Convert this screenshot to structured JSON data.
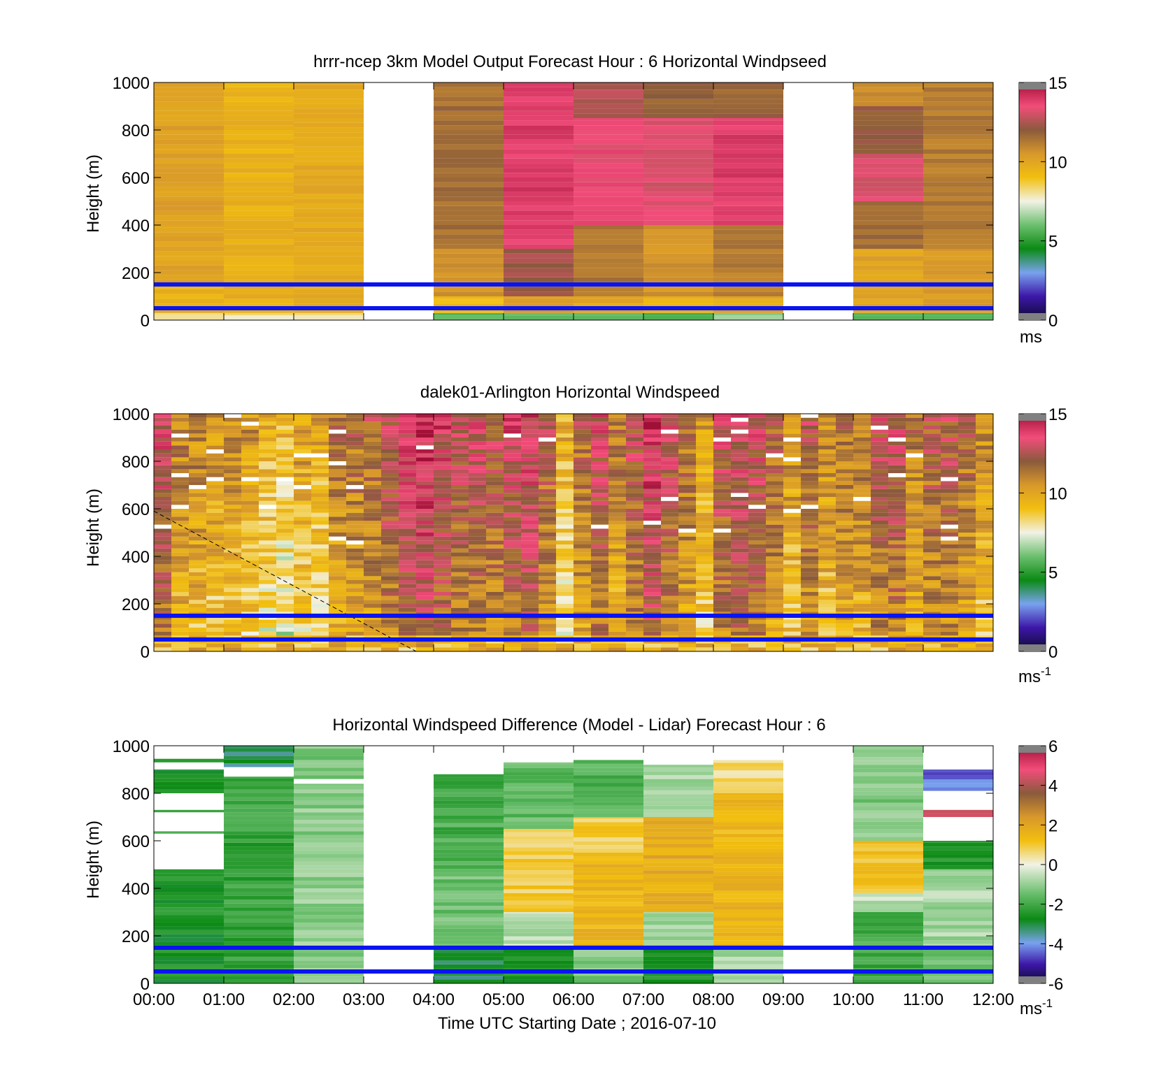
{
  "chart_data": [
    {
      "type": "heatmap",
      "title": "hrrr-ncep 3km Model Output   Forecast Hour : 6 Horizontal Windpseed",
      "xlabel": "",
      "ylabel": "Height (m)",
      "xlim": [
        0,
        12
      ],
      "ylim": [
        0,
        1000
      ],
      "yticks": [
        "0",
        "200",
        "400",
        "600",
        "800",
        "1000"
      ],
      "colorbar": {
        "min": 0,
        "max": 15,
        "ticks": [
          "0",
          "5",
          "10",
          "15"
        ],
        "unit": "ms",
        "unit_sup": ""
      },
      "reference_lines_m": [
        50,
        150
      ],
      "columns": [
        {
          "start_h": 0,
          "end_h": 1,
          "levels": [
            [
              0,
              30,
              8.2
            ],
            [
              30,
              150,
              9.5
            ],
            [
              150,
              400,
              10.1
            ],
            [
              400,
              1000,
              10.2
            ]
          ]
        },
        {
          "start_h": 1,
          "end_h": 2,
          "levels": [
            [
              0,
              30,
              8.0
            ],
            [
              30,
              300,
              9.6
            ],
            [
              300,
              1000,
              9.5
            ]
          ]
        },
        {
          "start_h": 2,
          "end_h": 3,
          "levels": [
            [
              0,
              30,
              8.1
            ],
            [
              30,
              1000,
              9.8
            ]
          ]
        },
        {
          "start_h": 3,
          "end_h": 4,
          "levels": []
        },
        {
          "start_h": 4,
          "end_h": 5,
          "levels": [
            [
              0,
              30,
              5.6
            ],
            [
              30,
              100,
              9.2
            ],
            [
              100,
              300,
              10.6
            ],
            [
              300,
              1000,
              11.5
            ]
          ]
        },
        {
          "start_h": 5,
          "end_h": 6,
          "levels": [
            [
              0,
              30,
              6.0
            ],
            [
              30,
              100,
              10.2
            ],
            [
              100,
              300,
              12.3
            ],
            [
              300,
              1000,
              13.9
            ]
          ]
        },
        {
          "start_h": 6,
          "end_h": 7,
          "levels": [
            [
              0,
              30,
              5.7
            ],
            [
              30,
              100,
              9.8
            ],
            [
              100,
              400,
              11.3
            ],
            [
              400,
              850,
              13.5
            ],
            [
              850,
              1000,
              12.6
            ]
          ]
        },
        {
          "start_h": 7,
          "end_h": 8,
          "levels": [
            [
              0,
              30,
              5.2
            ],
            [
              30,
              100,
              9.6
            ],
            [
              100,
              400,
              10.6
            ],
            [
              400,
              850,
              13.2
            ],
            [
              850,
              1000,
              11.8
            ]
          ]
        },
        {
          "start_h": 8,
          "end_h": 9,
          "levels": [
            [
              0,
              30,
              6.5
            ],
            [
              30,
              100,
              9.9
            ],
            [
              100,
              400,
              11.2
            ],
            [
              400,
              850,
              13.9
            ],
            [
              850,
              1000,
              11.8
            ]
          ]
        },
        {
          "start_h": 9,
          "end_h": 10,
          "levels": []
        },
        {
          "start_h": 10,
          "end_h": 11,
          "levels": [
            [
              0,
              30,
              5.4
            ],
            [
              30,
              300,
              10.1
            ],
            [
              300,
              500,
              11.6
            ],
            [
              500,
              700,
              13.1
            ],
            [
              700,
              900,
              12.0
            ],
            [
              900,
              1000,
              10.6
            ]
          ]
        },
        {
          "start_h": 11,
          "end_h": 12,
          "levels": [
            [
              0,
              30,
              5.8
            ],
            [
              30,
              300,
              10.3
            ],
            [
              300,
              1000,
              11.2
            ]
          ]
        }
      ]
    },
    {
      "type": "heatmap",
      "title": "dalek01-Arlington  Horizontal Windspeed",
      "xlabel": "",
      "ylabel": "Height (m)",
      "xlim": [
        0,
        12
      ],
      "ylim": [
        0,
        1000
      ],
      "yticks": [
        "0",
        "200",
        "400",
        "600",
        "800",
        "1000"
      ],
      "colorbar": {
        "min": 0,
        "max": 15,
        "ticks": [
          "0",
          "5",
          "10",
          "15"
        ],
        "unit": "ms",
        "unit_sup": "-1"
      },
      "reference_lines_m": [
        50,
        150
      ],
      "dashed_line": [
        [
          0,
          590
        ],
        [
          3.75,
          0
        ]
      ],
      "profile_interval_h": 0.25,
      "profile_top_m": 1000,
      "profile_means_ms": [
        13.0,
        11.0,
        10.8,
        10.4,
        10.6,
        10.2,
        9.4,
        9.0,
        10.0,
        9.6,
        11.2,
        11.4,
        11.8,
        12.6,
        13.6,
        14.0,
        13.2,
        12.6,
        12.8,
        12.2,
        13.0,
        13.4,
        11.8,
        9.4,
        11.6,
        12.8,
        11.2,
        12.4,
        13.8,
        12.6,
        11.4,
        10.0,
        12.6,
        13.0,
        12.8,
        11.6,
        10.4,
        12.0,
        10.6,
        11.4,
        11.2,
        12.4,
        12.6,
        11.0,
        12.0,
        12.2,
        11.4,
        10.4
      ]
    },
    {
      "type": "heatmap",
      "title": "Horizontal Windspeed Difference (Model - Lidar) Forecast Hour : 6",
      "xlabel": "Time UTC  Starting Date ; 2016-07-10",
      "ylabel": "Height (m)",
      "xlim": [
        0,
        12
      ],
      "ylim": [
        0,
        1000
      ],
      "xticks": [
        "00:00",
        "01:00",
        "02:00",
        "03:00",
        "04:00",
        "05:00",
        "06:00",
        "07:00",
        "08:00",
        "09:00",
        "10:00",
        "11:00",
        "12:00"
      ],
      "yticks": [
        "0",
        "200",
        "400",
        "600",
        "800",
        "1000"
      ],
      "colorbar": {
        "min": -6,
        "max": 6,
        "ticks": [
          "-6",
          "-4",
          "-2",
          "0",
          "2",
          "4",
          "6"
        ],
        "unit": "ms",
        "unit_sup": "-1"
      },
      "reference_lines_m": [
        50,
        150
      ],
      "columns": [
        {
          "start_h": 0,
          "end_h": 1,
          "levels": [
            [
              0,
              480,
              -2.6
            ],
            [
              480,
              630,
              null
            ],
            [
              630,
              640,
              -2.2
            ],
            [
              640,
              720,
              null
            ],
            [
              720,
              730,
              -2.4
            ],
            [
              730,
              800,
              null
            ],
            [
              800,
              900,
              -2.8
            ],
            [
              900,
              930,
              null
            ],
            [
              930,
              945,
              -2.5
            ]
          ]
        },
        {
          "start_h": 1,
          "end_h": 2,
          "levels": [
            [
              0,
              870,
              -2.2
            ],
            [
              870,
              910,
              null
            ],
            [
              910,
              1000,
              -3.2
            ]
          ]
        },
        {
          "start_h": 2,
          "end_h": 3,
          "levels": [
            [
              0,
              840,
              -1.1
            ],
            [
              840,
              860,
              null
            ],
            [
              860,
              1000,
              -1.3
            ]
          ]
        },
        {
          "start_h": 3,
          "end_h": 4,
          "levels": []
        },
        {
          "start_h": 4,
          "end_h": 5,
          "levels": [
            [
              0,
              150,
              -3.0
            ],
            [
              150,
              450,
              -1.4
            ],
            [
              450,
              880,
              -1.9
            ]
          ]
        },
        {
          "start_h": 5,
          "end_h": 6,
          "levels": [
            [
              0,
              150,
              -2.6
            ],
            [
              150,
              300,
              -0.6
            ],
            [
              300,
              650,
              0.9
            ],
            [
              650,
              930,
              -1.6
            ]
          ]
        },
        {
          "start_h": 6,
          "end_h": 7,
          "levels": [
            [
              0,
              150,
              -1.2
            ],
            [
              150,
              550,
              1.4
            ],
            [
              550,
              700,
              0.9
            ],
            [
              700,
              940,
              -1.8
            ]
          ]
        },
        {
          "start_h": 7,
          "end_h": 8,
          "levels": [
            [
              0,
              150,
              -2.6
            ],
            [
              150,
              300,
              -0.9
            ],
            [
              300,
              700,
              1.8
            ],
            [
              700,
              920,
              -0.7
            ]
          ]
        },
        {
          "start_h": 8,
          "end_h": 9,
          "levels": [
            [
              0,
              150,
              -0.8
            ],
            [
              150,
              800,
              1.5
            ],
            [
              800,
              940,
              0.6
            ]
          ]
        },
        {
          "start_h": 9,
          "end_h": 10,
          "levels": []
        },
        {
          "start_h": 10,
          "end_h": 11,
          "levels": [
            [
              0,
              300,
              -2.0
            ],
            [
              300,
              380,
              -0.5
            ],
            [
              380,
              600,
              1.1
            ],
            [
              600,
              1000,
              -1.2
            ]
          ]
        },
        {
          "start_h": 11,
          "end_h": 12,
          "levels": [
            [
              0,
              150,
              -1.6
            ],
            [
              150,
              480,
              -0.8
            ],
            [
              480,
              600,
              -2.4
            ],
            [
              600,
              700,
              null
            ],
            [
              700,
              730,
              4.2
            ],
            [
              730,
              810,
              null
            ],
            [
              810,
              900,
              -4.4
            ]
          ]
        }
      ]
    }
  ]
}
